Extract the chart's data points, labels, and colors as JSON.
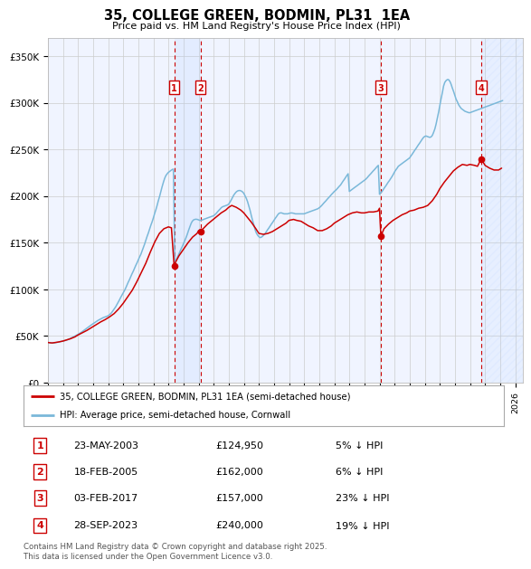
{
  "title": "35, COLLEGE GREEN, BODMIN, PL31  1EA",
  "subtitle": "Price paid vs. HM Land Registry's House Price Index (HPI)",
  "ylim": [
    0,
    370000
  ],
  "yticks": [
    0,
    50000,
    100000,
    150000,
    200000,
    250000,
    300000,
    350000
  ],
  "ytick_labels": [
    "£0",
    "£50K",
    "£100K",
    "£150K",
    "£200K",
    "£250K",
    "£300K",
    "£350K"
  ],
  "xmin": 1995.0,
  "xmax": 2026.5,
  "hpi_color": "#7ab8d9",
  "price_color": "#cc0000",
  "grid_color": "#cccccc",
  "bg_color": "#f0f4ff",
  "transactions": [
    {
      "num": 1,
      "date": "23-MAY-2003",
      "year": 2003.38,
      "price": 124950,
      "pct": "5%",
      "dir": "↓"
    },
    {
      "num": 2,
      "date": "18-FEB-2005",
      "year": 2005.12,
      "price": 162000,
      "pct": "6%",
      "dir": "↓"
    },
    {
      "num": 3,
      "date": "03-FEB-2017",
      "year": 2017.09,
      "price": 157000,
      "pct": "23%",
      "dir": "↓"
    },
    {
      "num": 4,
      "date": "28-SEP-2023",
      "year": 2023.75,
      "price": 240000,
      "pct": "19%",
      "dir": "↓"
    }
  ],
  "legend_line1": "35, COLLEGE GREEN, BODMIN, PL31 1EA (semi-detached house)",
  "legend_line2": "HPI: Average price, semi-detached house, Cornwall",
  "footnote": "Contains HM Land Registry data © Crown copyright and database right 2025.\nThis data is licensed under the Open Government Licence v3.0.",
  "hpi_years": [
    1995.0,
    1995.08,
    1995.17,
    1995.25,
    1995.33,
    1995.42,
    1995.5,
    1995.58,
    1995.67,
    1995.75,
    1995.83,
    1995.92,
    1996.0,
    1996.08,
    1996.17,
    1996.25,
    1996.33,
    1996.42,
    1996.5,
    1996.58,
    1996.67,
    1996.75,
    1996.83,
    1996.92,
    1997.0,
    1997.08,
    1997.17,
    1997.25,
    1997.33,
    1997.42,
    1997.5,
    1997.58,
    1997.67,
    1997.75,
    1997.83,
    1997.92,
    1998.0,
    1998.08,
    1998.17,
    1998.25,
    1998.33,
    1998.42,
    1998.5,
    1998.58,
    1998.67,
    1998.75,
    1998.83,
    1998.92,
    1999.0,
    1999.08,
    1999.17,
    1999.25,
    1999.33,
    1999.42,
    1999.5,
    1999.58,
    1999.67,
    1999.75,
    1999.83,
    1999.92,
    2000.0,
    2000.08,
    2000.17,
    2000.25,
    2000.33,
    2000.42,
    2000.5,
    2000.58,
    2000.67,
    2000.75,
    2000.83,
    2000.92,
    2001.0,
    2001.08,
    2001.17,
    2001.25,
    2001.33,
    2001.42,
    2001.5,
    2001.58,
    2001.67,
    2001.75,
    2001.83,
    2001.92,
    2002.0,
    2002.08,
    2002.17,
    2002.25,
    2002.33,
    2002.42,
    2002.5,
    2002.58,
    2002.67,
    2002.75,
    2002.83,
    2002.92,
    2003.0,
    2003.08,
    2003.17,
    2003.25,
    2003.33,
    2003.42,
    2003.5,
    2003.58,
    2003.67,
    2003.75,
    2003.83,
    2003.92,
    2004.0,
    2004.08,
    2004.17,
    2004.25,
    2004.33,
    2004.42,
    2004.5,
    2004.58,
    2004.67,
    2004.75,
    2004.83,
    2004.92,
    2005.0,
    2005.08,
    2005.17,
    2005.25,
    2005.33,
    2005.42,
    2005.5,
    2005.58,
    2005.67,
    2005.75,
    2005.83,
    2005.92,
    2006.0,
    2006.08,
    2006.17,
    2006.25,
    2006.33,
    2006.42,
    2006.5,
    2006.58,
    2006.67,
    2006.75,
    2006.83,
    2006.92,
    2007.0,
    2007.08,
    2007.17,
    2007.25,
    2007.33,
    2007.42,
    2007.5,
    2007.58,
    2007.67,
    2007.75,
    2007.83,
    2007.92,
    2008.0,
    2008.08,
    2008.17,
    2008.25,
    2008.33,
    2008.42,
    2008.5,
    2008.58,
    2008.67,
    2008.75,
    2008.83,
    2008.92,
    2009.0,
    2009.08,
    2009.17,
    2009.25,
    2009.33,
    2009.42,
    2009.5,
    2009.58,
    2009.67,
    2009.75,
    2009.83,
    2009.92,
    2010.0,
    2010.08,
    2010.17,
    2010.25,
    2010.33,
    2010.42,
    2010.5,
    2010.58,
    2010.67,
    2010.75,
    2010.83,
    2010.92,
    2011.0,
    2011.08,
    2011.17,
    2011.25,
    2011.33,
    2011.42,
    2011.5,
    2011.58,
    2011.67,
    2011.75,
    2011.83,
    2011.92,
    2012.0,
    2012.08,
    2012.17,
    2012.25,
    2012.33,
    2012.42,
    2012.5,
    2012.58,
    2012.67,
    2012.75,
    2012.83,
    2012.92,
    2013.0,
    2013.08,
    2013.17,
    2013.25,
    2013.33,
    2013.42,
    2013.5,
    2013.58,
    2013.67,
    2013.75,
    2013.83,
    2013.92,
    2014.0,
    2014.08,
    2014.17,
    2014.25,
    2014.33,
    2014.42,
    2014.5,
    2014.58,
    2014.67,
    2014.75,
    2014.83,
    2014.92,
    2015.0,
    2015.08,
    2015.17,
    2015.25,
    2015.33,
    2015.42,
    2015.5,
    2015.58,
    2015.67,
    2015.75,
    2015.83,
    2015.92,
    2016.0,
    2016.08,
    2016.17,
    2016.25,
    2016.33,
    2016.42,
    2016.5,
    2016.58,
    2016.67,
    2016.75,
    2016.83,
    2016.92,
    2017.0,
    2017.08,
    2017.17,
    2017.25,
    2017.33,
    2017.42,
    2017.5,
    2017.58,
    2017.67,
    2017.75,
    2017.83,
    2017.92,
    2018.0,
    2018.08,
    2018.17,
    2018.25,
    2018.33,
    2018.42,
    2018.5,
    2018.58,
    2018.67,
    2018.75,
    2018.83,
    2018.92,
    2019.0,
    2019.08,
    2019.17,
    2019.25,
    2019.33,
    2019.42,
    2019.5,
    2019.58,
    2019.67,
    2019.75,
    2019.83,
    2019.92,
    2020.0,
    2020.08,
    2020.17,
    2020.25,
    2020.33,
    2020.42,
    2020.5,
    2020.58,
    2020.67,
    2020.75,
    2020.83,
    2020.92,
    2021.0,
    2021.08,
    2021.17,
    2021.25,
    2021.33,
    2021.42,
    2021.5,
    2021.58,
    2021.67,
    2021.75,
    2021.83,
    2021.92,
    2022.0,
    2022.08,
    2022.17,
    2022.25,
    2022.33,
    2022.42,
    2022.5,
    2022.58,
    2022.67,
    2022.75,
    2022.83,
    2022.92,
    2023.0,
    2023.08,
    2023.17,
    2023.25,
    2023.33,
    2023.42,
    2023.5,
    2023.58,
    2023.67,
    2023.75,
    2023.83,
    2023.92,
    2024.0,
    2024.08,
    2024.17,
    2024.25,
    2024.33,
    2024.42,
    2024.5,
    2024.58,
    2024.67,
    2024.75,
    2024.83,
    2024.92,
    2025.0,
    2025.08,
    2025.17
  ],
  "hpi_values": [
    43000,
    42800,
    42600,
    42500,
    42400,
    42500,
    42700,
    43000,
    43300,
    43600,
    43900,
    44200,
    44500,
    44800,
    45200,
    45600,
    46100,
    46700,
    47400,
    48100,
    48800,
    49500,
    50200,
    50900,
    51600,
    52400,
    53300,
    54200,
    55200,
    56200,
    57200,
    58200,
    59200,
    60200,
    61200,
    62200,
    63100,
    64000,
    64900,
    65800,
    66700,
    67500,
    68300,
    69000,
    69600,
    70100,
    70600,
    71100,
    71600,
    72700,
    73900,
    75400,
    77200,
    79100,
    81200,
    83500,
    86000,
    88600,
    91200,
    93800,
    96000,
    98500,
    101500,
    104500,
    107500,
    110500,
    113500,
    116500,
    119500,
    122500,
    125500,
    128500,
    131500,
    134500,
    137500,
    141000,
    144500,
    148500,
    152500,
    156500,
    160500,
    164500,
    168500,
    172500,
    176500,
    181000,
    185500,
    190000,
    195000,
    200000,
    205000,
    210000,
    215000,
    219000,
    222000,
    224000,
    225500,
    226500,
    227500,
    228500,
    229000,
    129000,
    131000,
    134000,
    137000,
    140000,
    143000,
    146000,
    149000,
    152000,
    155500,
    159000,
    163000,
    167000,
    170500,
    173000,
    174500,
    175000,
    175200,
    175000,
    174500,
    174000,
    174000,
    174500,
    175000,
    175500,
    176000,
    176500,
    177000,
    177500,
    178000,
    178500,
    179000,
    180000,
    181500,
    183000,
    184500,
    186000,
    187500,
    188500,
    189000,
    189500,
    190000,
    190500,
    191500,
    193500,
    196000,
    198500,
    201000,
    203000,
    204500,
    205500,
    206000,
    206000,
    205500,
    204500,
    203000,
    200500,
    197500,
    194000,
    189500,
    184500,
    179000,
    174000,
    169000,
    164000,
    160500,
    158000,
    156500,
    155500,
    156000,
    157000,
    158500,
    160000,
    162000,
    164000,
    166000,
    168000,
    170000,
    172000,
    174000,
    176000,
    178000,
    180000,
    181500,
    182000,
    182000,
    181500,
    181000,
    181000,
    181000,
    181000,
    181500,
    181800,
    182000,
    181800,
    181500,
    181000,
    181000,
    181000,
    181000,
    181000,
    181000,
    181000,
    181000,
    181500,
    182000,
    182500,
    183000,
    183500,
    184000,
    184500,
    185000,
    185500,
    186000,
    186500,
    187500,
    188500,
    190000,
    191500,
    193000,
    194500,
    196000,
    197500,
    199000,
    200500,
    202000,
    203500,
    205000,
    206000,
    207500,
    209000,
    210500,
    212000,
    214000,
    216000,
    218000,
    220000,
    222000,
    224000,
    205000,
    206000,
    207000,
    208000,
    209000,
    210000,
    211000,
    212000,
    213000,
    214000,
    215000,
    216000,
    217000,
    218000,
    219500,
    221000,
    222500,
    224000,
    225500,
    227000,
    228500,
    230000,
    231500,
    233000,
    202000,
    203500,
    205000,
    207000,
    209000,
    211000,
    213000,
    215000,
    217000,
    219000,
    221000,
    223500,
    226000,
    228000,
    230000,
    232000,
    233000,
    234000,
    235000,
    236000,
    237000,
    238000,
    239000,
    240000,
    241000,
    243000,
    245000,
    247000,
    249000,
    251000,
    253000,
    255000,
    257000,
    259000,
    261000,
    263000,
    264000,
    264500,
    264000,
    263500,
    263000,
    263500,
    265000,
    268000,
    272000,
    277000,
    283000,
    290000,
    297000,
    304000,
    311000,
    318000,
    322000,
    324000,
    325000,
    325000,
    323000,
    320000,
    316000,
    312000,
    308000,
    304000,
    301000,
    298000,
    296000,
    294000,
    293000,
    292000,
    291000,
    290500,
    290000,
    289500,
    289500,
    290000,
    290500,
    291000,
    291500,
    292000,
    292500,
    293000,
    293500,
    294000,
    294500,
    295000,
    295500,
    296000,
    296500,
    297000,
    297500,
    298000,
    298500,
    299000,
    299500,
    300000,
    300500,
    301000,
    301500,
    302000,
    302500
  ],
  "price_years": [
    1995.0,
    1995.1,
    1995.2,
    1995.3,
    1995.5,
    1995.7,
    1996.0,
    1996.2,
    1996.5,
    1996.8,
    1997.0,
    1997.3,
    1997.6,
    1997.9,
    1998.2,
    1998.5,
    1998.8,
    1999.1,
    1999.4,
    1999.7,
    2000.0,
    2000.3,
    2000.6,
    2000.9,
    2001.2,
    2001.5,
    2001.8,
    2002.1,
    2002.4,
    2002.7,
    2003.0,
    2003.2,
    2003.38,
    2003.5,
    2003.7,
    2004.0,
    2004.3,
    2004.6,
    2004.9,
    2005.0,
    2005.12,
    2005.3,
    2005.6,
    2005.9,
    2006.2,
    2006.5,
    2006.8,
    2007.0,
    2007.2,
    2007.5,
    2007.8,
    2008.0,
    2008.2,
    2008.5,
    2008.8,
    2009.0,
    2009.3,
    2009.6,
    2009.9,
    2010.2,
    2010.5,
    2010.8,
    2011.0,
    2011.3,
    2011.5,
    2011.8,
    2012.0,
    2012.3,
    2012.6,
    2012.9,
    2013.2,
    2013.5,
    2013.8,
    2014.0,
    2014.3,
    2014.6,
    2014.9,
    2015.2,
    2015.5,
    2015.8,
    2016.0,
    2016.3,
    2016.6,
    2016.9,
    2017.0,
    2017.09,
    2017.3,
    2017.6,
    2017.9,
    2018.2,
    2018.5,
    2018.8,
    2019.0,
    2019.3,
    2019.6,
    2019.9,
    2020.2,
    2020.5,
    2020.8,
    2021.0,
    2021.3,
    2021.6,
    2021.9,
    2022.2,
    2022.5,
    2022.8,
    2023.0,
    2023.3,
    2023.5,
    2023.75,
    2024.0,
    2024.3,
    2024.6,
    2024.9,
    2025.1
  ],
  "price_values": [
    43000,
    42800,
    42600,
    42500,
    43000,
    43500,
    44500,
    45500,
    47000,
    49000,
    51000,
    53500,
    56000,
    59000,
    62000,
    65000,
    67500,
    70500,
    74000,
    79000,
    85000,
    92000,
    99000,
    108000,
    118000,
    128000,
    140000,
    151000,
    160000,
    165000,
    167000,
    166000,
    124950,
    130000,
    136000,
    143000,
    150000,
    156000,
    160000,
    163000,
    162000,
    165000,
    170000,
    174000,
    178000,
    182000,
    185000,
    188000,
    190000,
    188000,
    185000,
    182000,
    178000,
    172000,
    165000,
    160000,
    159000,
    160000,
    162000,
    165000,
    168000,
    171000,
    174000,
    175000,
    174000,
    173000,
    171000,
    168000,
    166000,
    163000,
    163000,
    165000,
    168000,
    171000,
    174000,
    177000,
    180000,
    182000,
    183000,
    182000,
    182000,
    183000,
    183000,
    184000,
    187000,
    157000,
    165000,
    170000,
    174000,
    177000,
    180000,
    182000,
    184000,
    185000,
    187000,
    188000,
    190000,
    195000,
    202000,
    208000,
    215000,
    221000,
    227000,
    231000,
    234000,
    233000,
    234000,
    233000,
    232000,
    240000,
    233000,
    230000,
    228000,
    228000,
    230000
  ]
}
